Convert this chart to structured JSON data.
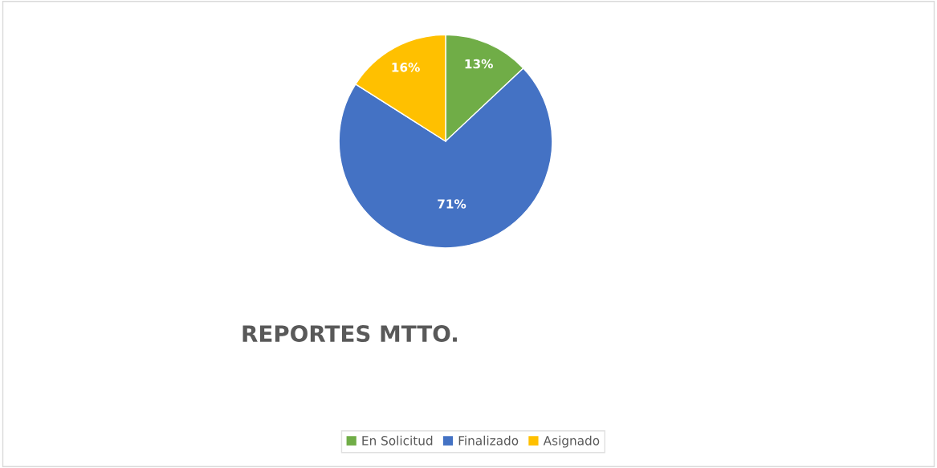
{
  "chart_data": {
    "type": "pie",
    "title": "REPORTES MTTO.",
    "categories": [
      "En Solicitud",
      "Finalizado",
      "Asignado"
    ],
    "values": [
      13,
      71,
      16
    ],
    "colors": [
      "#70ad47",
      "#4472c4",
      "#ffc000"
    ],
    "value_labels": [
      "13%",
      "71%",
      "16%"
    ],
    "legend": "bottom"
  }
}
